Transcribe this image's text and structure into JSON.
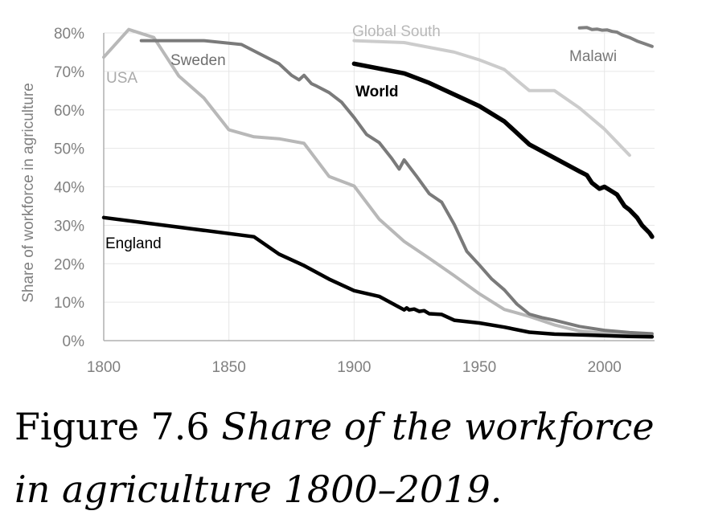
{
  "chart_data": {
    "type": "line",
    "title": "",
    "xlabel": "",
    "ylabel": "Share of workforce in agriculture",
    "xlim": [
      1800,
      2020
    ],
    "ylim": [
      0,
      80
    ],
    "x_ticks": [
      1800,
      1850,
      1900,
      1950,
      2000
    ],
    "y_ticks": [
      0,
      10,
      20,
      30,
      40,
      50,
      60,
      70,
      80
    ],
    "y_tick_labels": [
      "0%",
      "10%",
      "20%",
      "30%",
      "40%",
      "50%",
      "60%",
      "70%",
      "80%"
    ],
    "grid": "on",
    "series": [
      {
        "name": "USA",
        "color": "#b8b8b8",
        "x": [
          1800,
          1810,
          1820,
          1830,
          1840,
          1850,
          1860,
          1870,
          1880,
          1890,
          1900,
          1910,
          1920,
          1930,
          1940,
          1950,
          1960,
          1970,
          1980,
          1990,
          2000,
          2010,
          2019
        ],
        "y": [
          73.7,
          80.9,
          78.8,
          68.8,
          63.1,
          54.8,
          53.0,
          52.5,
          51.3,
          42.7,
          40.2,
          31.6,
          25.8,
          21.4,
          16.9,
          12.2,
          8.1,
          6.3,
          4.1,
          2.5,
          1.9,
          1.6,
          1.4
        ]
      },
      {
        "name": "Sweden",
        "color": "#7a7a7a",
        "x": [
          1815,
          1840,
          1855,
          1870,
          1875,
          1878,
          1880,
          1883,
          1885,
          1890,
          1895,
          1900,
          1905,
          1910,
          1915,
          1918,
          1920,
          1925,
          1930,
          1935,
          1940,
          1945,
          1950,
          1955,
          1960,
          1965,
          1970,
          1975,
          1980,
          1990,
          2000,
          2010,
          2019
        ],
        "y": [
          78,
          78,
          77,
          72,
          69,
          67.8,
          69,
          66.8,
          66.2,
          64.5,
          62,
          58,
          53.6,
          51.5,
          47.4,
          44.6,
          47,
          42.7,
          38.2,
          36,
          30.2,
          23.2,
          19.7,
          16,
          13.2,
          9.5,
          6.9,
          6,
          5.3,
          3.7,
          2.7,
          2.1,
          1.8
        ]
      },
      {
        "name": "Global South",
        "color": "#cccccc",
        "x": [
          1900,
          1920,
          1940,
          1950,
          1960,
          1965,
          1970,
          1975,
          1980,
          1990,
          2000,
          2010
        ],
        "y": [
          78,
          77.5,
          75,
          73,
          70.5,
          67.7,
          65,
          65,
          65,
          60.5,
          55,
          48.2
        ]
      },
      {
        "name": "World",
        "color": "#000000",
        "x": [
          1900,
          1920,
          1930,
          1940,
          1950,
          1960,
          1970,
          1980,
          1990,
          1993,
          1995,
          1998,
          2000,
          2005,
          2008,
          2010,
          2013,
          2015,
          2018,
          2019
        ],
        "y": [
          72,
          69.5,
          67,
          64,
          61,
          57,
          51,
          47.5,
          44,
          43,
          41,
          39.5,
          40,
          38,
          35,
          34,
          32,
          30,
          28,
          27
        ]
      },
      {
        "name": "Malawi",
        "color": "#808080",
        "x": [
          1990,
          1993,
          1995,
          1997,
          1999,
          2001,
          2003,
          2005,
          2007,
          2010,
          2013,
          2016,
          2019
        ],
        "y": [
          81.3,
          81.4,
          80.9,
          81,
          80.7,
          80.8,
          80.4,
          80.2,
          79.5,
          78.8,
          77.9,
          77.2,
          76.5
        ]
      },
      {
        "name": "England",
        "color": "#000000",
        "x": [
          1800,
          1860,
          1870,
          1880,
          1890,
          1900,
          1910,
          1920,
          1921,
          1922,
          1924,
          1926,
          1928,
          1930,
          1935,
          1940,
          1950,
          1960,
          1970,
          1980,
          1990,
          2000,
          2010,
          2019
        ],
        "y": [
          32,
          27,
          22.5,
          19.5,
          16,
          13,
          11.5,
          8,
          8.5,
          8,
          8.2,
          7.6,
          7.8,
          7,
          6.8,
          5.3,
          4.6,
          3.5,
          2.2,
          1.7,
          1.5,
          1.3,
          1.1,
          1.0
        ]
      }
    ],
    "annotations": [
      "USA",
      "Sweden",
      "Global South",
      "World",
      "Malawi",
      "England"
    ]
  },
  "caption": {
    "prefix": "Figure 7.6 ",
    "line1_italic": "Share of the workforce",
    "line2_italic": "in agriculture 1800–2019."
  }
}
